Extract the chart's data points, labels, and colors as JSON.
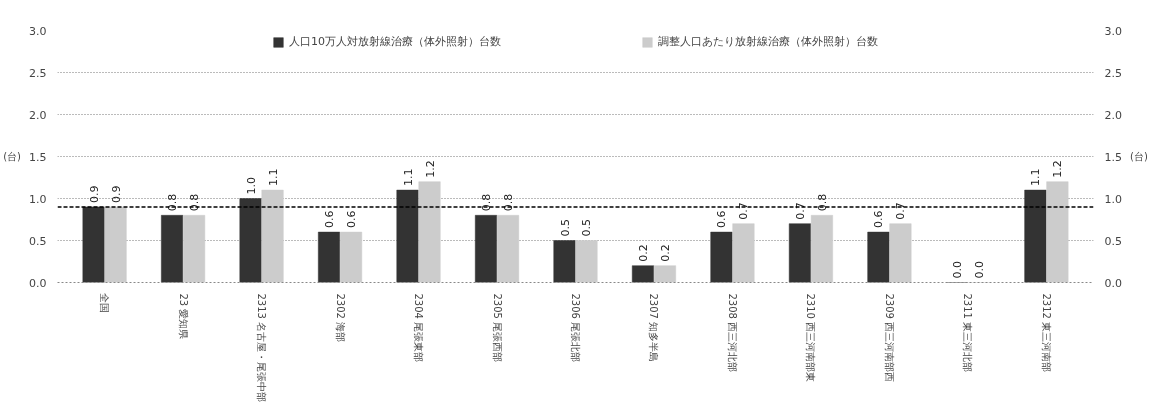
{
  "chart_data": {
    "type": "bar",
    "categories": [
      "全国",
      "23 愛知県",
      "2313 名古屋・尾張中部",
      "2302 海部",
      "2304 尾張東部",
      "2305 尾張西部",
      "2306 尾張北部",
      "2307 知多半島",
      "2308 西三河北部",
      "2310 西三河南部東",
      "2309 西三河南部西",
      "2311 東三河北部",
      "2312 東三河南部"
    ],
    "series": [
      {
        "name": "人口10万人対放射線治療（体外照射）台数",
        "color": "#333333",
        "values": [
          0.9,
          0.8,
          1.0,
          0.6,
          1.1,
          0.8,
          0.5,
          0.2,
          0.6,
          0.7,
          0.6,
          0.0,
          1.1
        ],
        "value_labels": [
          "0.9",
          "0.8",
          "1.0",
          "0.6",
          "1.1",
          "0.8",
          "0.5",
          "0.2",
          "0.6",
          "0.7",
          "0.6",
          "0.0",
          "1.1"
        ]
      },
      {
        "name": "調整人口あたり放射線治療（体外照射）台数",
        "color": "#cccccc",
        "values": [
          0.9,
          0.8,
          1.1,
          0.6,
          1.2,
          0.8,
          0.5,
          0.2,
          0.7,
          0.8,
          0.7,
          0.0,
          1.2
        ],
        "value_labels": [
          "0.9",
          "0.8",
          "1.1",
          "0.6",
          "1.2",
          "0.8",
          "0.5",
          "0.2",
          "0.7",
          "0.8",
          "0.7",
          "0.0",
          "1.2"
        ]
      }
    ],
    "ylabel": "(台)",
    "y2label": "(台)",
    "ylim": [
      0,
      3
    ],
    "y2lim": [
      0,
      3
    ],
    "yticks": [
      {
        "value": 0,
        "label": "0.0"
      },
      {
        "value": 0.5,
        "label": "0.5"
      },
      {
        "value": 1,
        "label": "1.0"
      },
      {
        "value": 1.5,
        "label": "1.5"
      },
      {
        "value": 2,
        "label": "2.0"
      },
      {
        "value": 2.5,
        "label": "2.5"
      },
      {
        "value": 3,
        "label": "3.0"
      }
    ],
    "y2ticks": [
      {
        "value": 0,
        "label": "0.0"
      },
      {
        "value": 0.5,
        "label": "0.5"
      },
      {
        "value": 1,
        "label": "1.0"
      },
      {
        "value": 1.5,
        "label": "1.5"
      },
      {
        "value": 2,
        "label": "2.0"
      },
      {
        "value": 2.5,
        "label": "2.5"
      },
      {
        "value": 3,
        "label": "3.0"
      }
    ],
    "ref_lines": [
      {
        "axis": "y",
        "value": 0.9,
        "label": null,
        "color": "#000000",
        "line_style": "dashed"
      }
    ],
    "grid": "y",
    "legend": "top"
  }
}
